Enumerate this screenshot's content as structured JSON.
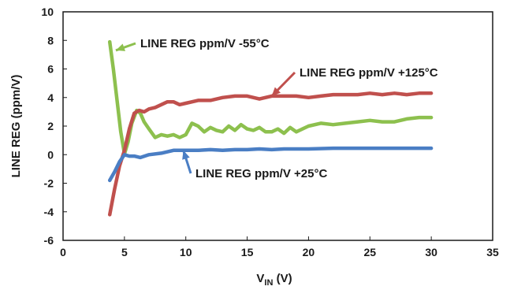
{
  "chart_data": {
    "type": "line",
    "title": "",
    "xlabel": {
      "main": "V",
      "sub": "IN",
      "unit": " (V)"
    },
    "ylabel": "LINE REG (ppm/V)",
    "xlim": [
      0,
      35
    ],
    "ylim": [
      -6,
      10
    ],
    "xticks": [
      0,
      5,
      10,
      15,
      20,
      25,
      30,
      35
    ],
    "yticks": [
      -6,
      -4,
      -2,
      0,
      2,
      4,
      6,
      8,
      10
    ],
    "grid": false,
    "series": [
      {
        "name": "LINE REG ppm/V -55°C",
        "color": "#8dc04e",
        "x": [
          3.8,
          4.1,
          4.4,
          4.7,
          5.0,
          5.3,
          5.6,
          6.0,
          6.3,
          6.6,
          7.0,
          7.5,
          8.0,
          8.5,
          9.0,
          9.5,
          10.0,
          10.5,
          11.0,
          11.5,
          12.0,
          12.5,
          13.0,
          13.5,
          14.0,
          14.5,
          15.0,
          15.5,
          16.0,
          16.5,
          17.0,
          17.5,
          18.0,
          18.5,
          19.0,
          20.0,
          21.0,
          22.0,
          23.0,
          24.0,
          25.0,
          26.0,
          27.0,
          28.0,
          29.0,
          30.0
        ],
        "y": [
          7.9,
          6.0,
          3.8,
          1.6,
          0.05,
          0.9,
          2.2,
          3.1,
          2.9,
          2.3,
          1.8,
          1.2,
          1.4,
          1.3,
          1.4,
          1.2,
          1.4,
          2.2,
          2.0,
          1.6,
          1.9,
          1.7,
          1.6,
          2.0,
          1.7,
          2.1,
          1.8,
          1.7,
          1.9,
          1.6,
          1.6,
          1.8,
          1.5,
          1.9,
          1.6,
          2.0,
          2.2,
          2.1,
          2.2,
          2.3,
          2.4,
          2.3,
          2.3,
          2.5,
          2.6,
          2.6
        ]
      },
      {
        "name": "LINE REG ppm/V +125°C",
        "color": "#c0504d",
        "x": [
          3.8,
          4.2,
          4.6,
          5.0,
          5.4,
          5.8,
          6.2,
          6.6,
          7.0,
          7.5,
          8.0,
          8.5,
          9.0,
          9.5,
          10.0,
          11.0,
          12.0,
          13.0,
          14.0,
          15.0,
          16.0,
          17.0,
          18.0,
          19.0,
          20.0,
          21.0,
          22.0,
          23.0,
          24.0,
          25.0,
          26.0,
          27.0,
          28.0,
          29.0,
          30.0
        ],
        "y": [
          -4.2,
          -2.4,
          -0.8,
          0.3,
          1.8,
          2.9,
          3.1,
          3.0,
          3.2,
          3.3,
          3.5,
          3.7,
          3.7,
          3.5,
          3.6,
          3.8,
          3.8,
          4.0,
          4.1,
          4.1,
          3.9,
          4.1,
          4.1,
          4.1,
          4.0,
          4.1,
          4.2,
          4.2,
          4.2,
          4.3,
          4.2,
          4.3,
          4.2,
          4.3,
          4.3
        ]
      },
      {
        "name": "LINE REG ppm/V +25°C",
        "color": "#4a7ec4",
        "x": [
          3.8,
          4.2,
          4.6,
          5.0,
          5.4,
          5.8,
          6.3,
          7.0,
          8.0,
          9.0,
          10.0,
          11.0,
          12.0,
          13.0,
          14.0,
          15.0,
          16.0,
          17.0,
          18.0,
          19.0,
          20.0,
          22.0,
          24.0,
          26.0,
          28.0,
          30.0
        ],
        "y": [
          -1.8,
          -1.2,
          -0.5,
          0.0,
          -0.1,
          -0.1,
          -0.2,
          0.0,
          0.1,
          0.3,
          0.3,
          0.3,
          0.35,
          0.3,
          0.35,
          0.35,
          0.4,
          0.35,
          0.4,
          0.4,
          0.4,
          0.45,
          0.45,
          0.45,
          0.45,
          0.45
        ]
      }
    ],
    "annotations": [
      {
        "text": "LINE REG ppm/V -55°C",
        "series": 0,
        "point": [
          4.3,
          7.3
        ]
      },
      {
        "text": "LINE REG ppm/V +125°C",
        "series": 1,
        "point": [
          17.0,
          4.1
        ]
      },
      {
        "text": "LINE REG ppm/V +25°C",
        "series": 2,
        "point": [
          9.8,
          0.3
        ]
      }
    ]
  }
}
